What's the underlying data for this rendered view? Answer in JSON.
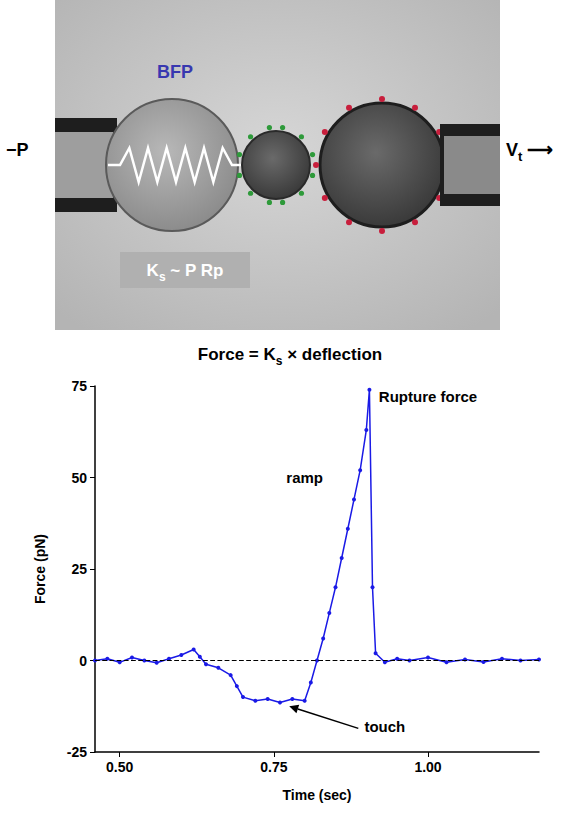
{
  "diagram": {
    "probe_label": "BFP",
    "left_label": [
      {
        "t": "−P"
      }
    ],
    "right_label": [
      {
        "t": "V"
      },
      {
        "t": "t",
        "sub": true
      },
      {
        "t": " ⟶"
      }
    ],
    "stiffness_label": [
      {
        "t": "K"
      },
      {
        "t": "s",
        "sub": true
      },
      {
        "t": " ~ P Rp"
      }
    ],
    "caption": [
      {
        "t": "Force = K"
      },
      {
        "t": "s",
        "sub": true
      },
      {
        "t": " × deflection"
      }
    ]
  },
  "chart_data": {
    "type": "line",
    "x_label": "Time (sec)",
    "y_label": "Force (pN)",
    "color": "#1a1ae6",
    "marker": "circle",
    "line_style": "solid",
    "grid": false,
    "x": [
      0.46,
      0.48,
      0.5,
      0.52,
      0.54,
      0.56,
      0.58,
      0.6,
      0.62,
      0.63,
      0.64,
      0.66,
      0.68,
      0.69,
      0.7,
      0.72,
      0.74,
      0.76,
      0.78,
      0.8,
      0.81,
      0.82,
      0.83,
      0.84,
      0.85,
      0.86,
      0.87,
      0.88,
      0.89,
      0.9,
      0.905,
      0.91,
      0.915,
      0.93,
      0.95,
      0.97,
      1.0,
      1.03,
      1.06,
      1.09,
      1.12,
      1.15,
      1.18
    ],
    "values": [
      0,
      0.5,
      -0.5,
      0.8,
      0,
      -0.6,
      0.5,
      1.5,
      3,
      1,
      -1,
      -2,
      -4,
      -7,
      -10,
      -11,
      -10.5,
      -11.5,
      -10.5,
      -11,
      -6,
      0,
      6,
      13,
      20,
      28,
      36,
      44,
      52,
      63,
      74,
      20,
      2,
      -0.5,
      0.5,
      0,
      0.8,
      -0.5,
      0.3,
      -0.4,
      0.5,
      0,
      0.3
    ],
    "xlim": [
      0.46,
      1.18
    ],
    "ylim": [
      -25,
      75
    ],
    "xticks": [
      {
        "value": 0.5,
        "label": "0.50"
      },
      {
        "value": 0.75,
        "label": "0.75"
      },
      {
        "value": 1.0,
        "label": "1.00"
      }
    ],
    "yticks": [
      -25,
      0,
      25,
      50,
      75
    ],
    "reference_line": {
      "y": 0,
      "line_style": "dashed"
    },
    "annotations": [
      {
        "text": "Rupture force",
        "x": 1.0,
        "y": 72
      },
      {
        "text": "ramp",
        "x": 0.8,
        "y": 50
      },
      {
        "text": "touch",
        "x": 0.93,
        "y": -18,
        "arrow_to": [
          0.775,
          -12.5
        ]
      }
    ]
  }
}
